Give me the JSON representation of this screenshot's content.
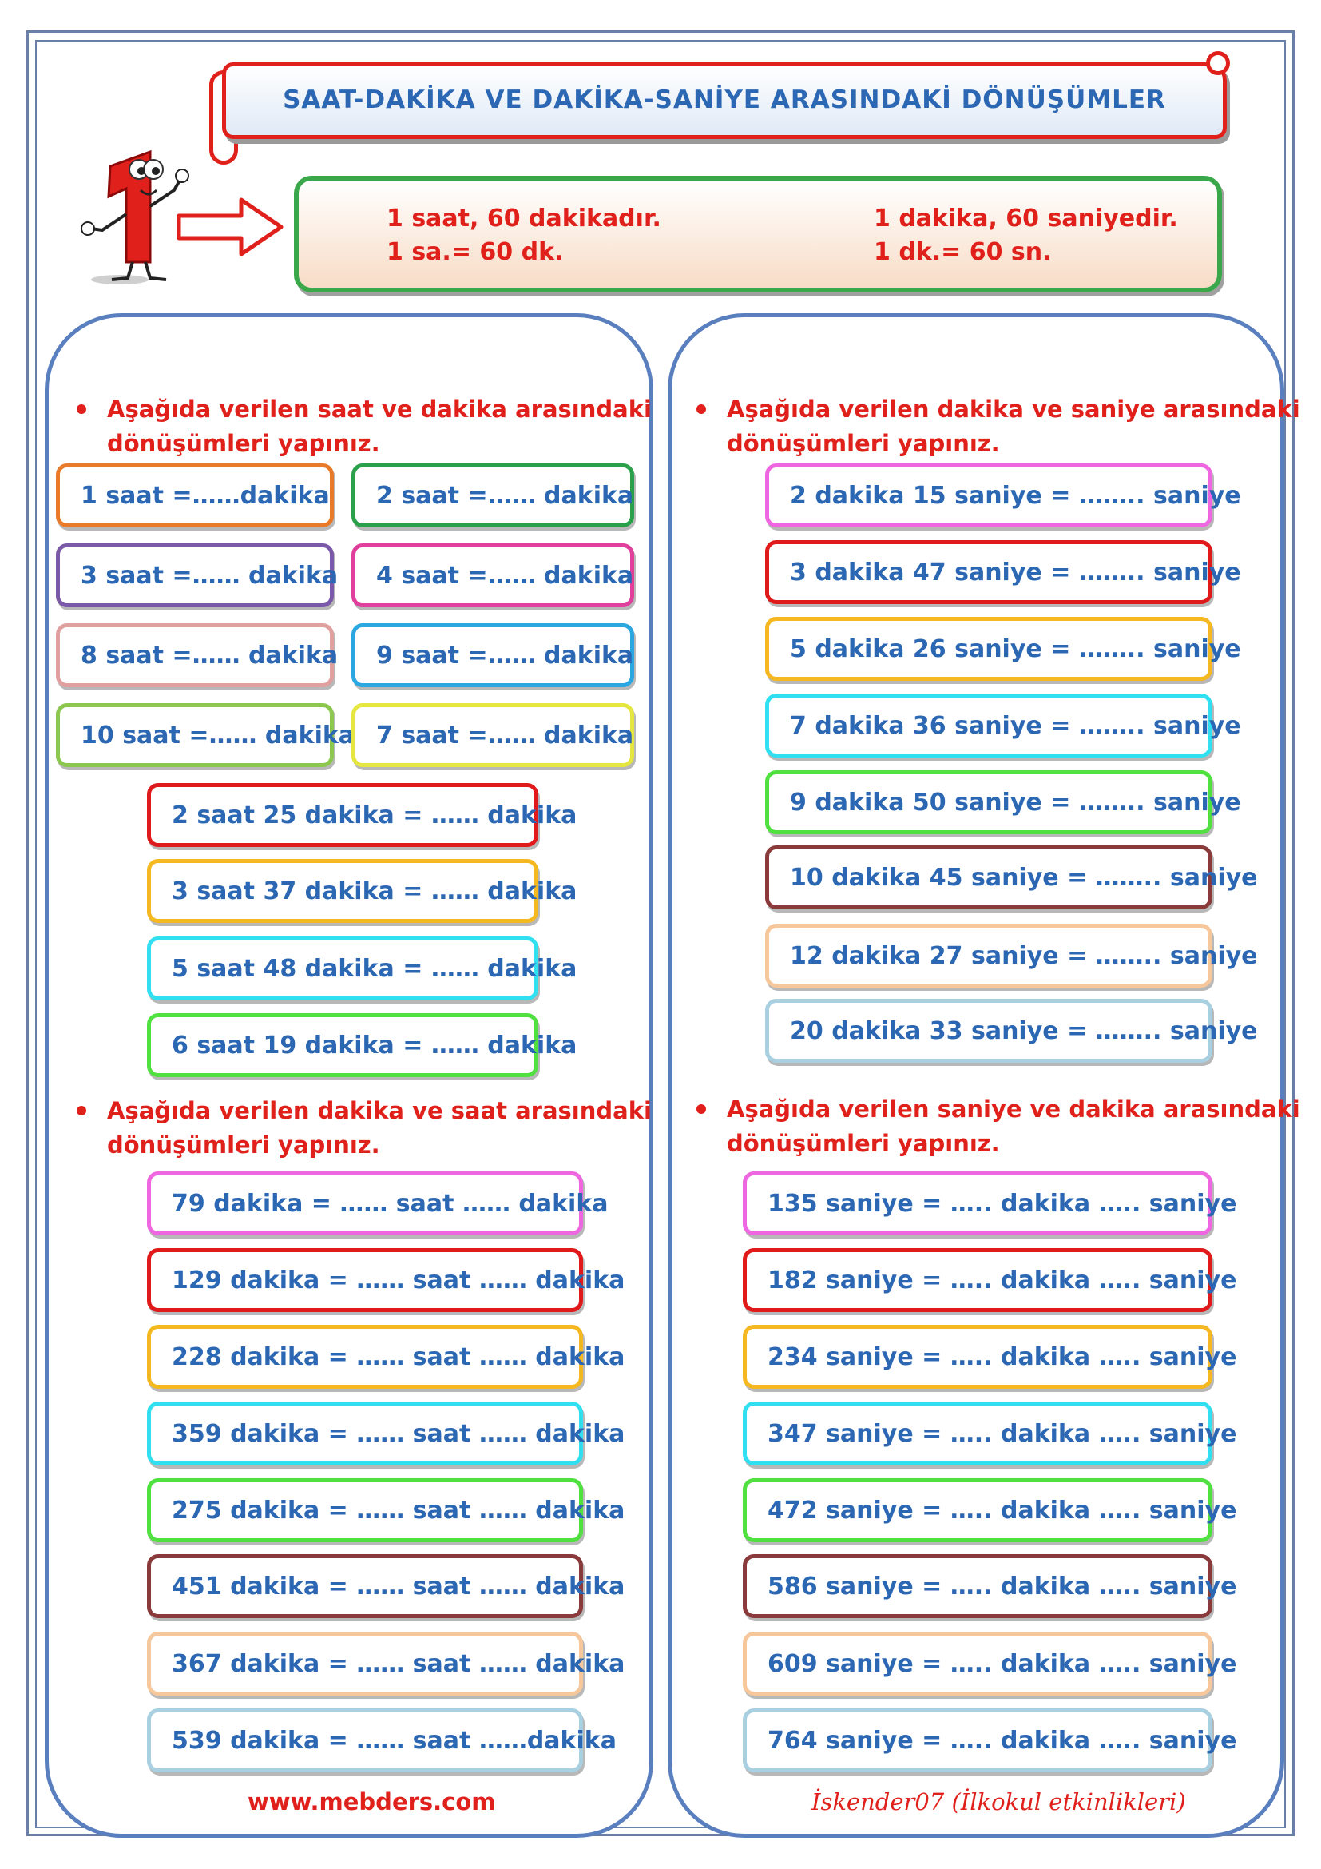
{
  "title": "SAAT-DAKİKA VE DAKİKA-SANİYE ARASINDAKİ DÖNÜŞÜMLER",
  "info": {
    "line1_left": "1 saat, 60 dakikadır.",
    "line2_left": "1 sa.= 60 dk.",
    "line1_right": "1 dakika, 60 saniyedir.",
    "line2_right": "1 dk.= 60 sn."
  },
  "sections": {
    "saat_dakika": {
      "instruction_1": "Aşağıda verilen saat ve dakika arasındaki",
      "instruction_2": "dönüşümleri yapınız."
    },
    "dakika_saat": {
      "instruction_1": "Aşağıda verilen dakika ve saat arasındaki",
      "instruction_2": "dönüşümleri yapınız."
    },
    "dakika_saniye": {
      "instruction_1": "Aşağıda verilen dakika ve saniye arasındaki",
      "instruction_2": "dönüşümleri yapınız."
    },
    "saniye_dakika": {
      "instruction_1": "Aşağıda verilen saniye ve dakika arasındaki",
      "instruction_2": "dönüşümleri yapınız."
    }
  },
  "saat_small": [
    {
      "text": "1 saat =……dakika",
      "color": "#e87a2a"
    },
    {
      "text": "2 saat =…… dakika",
      "color": "#2aa04a"
    },
    {
      "text": "3 saat =…… dakika",
      "color": "#7a5aa8"
    },
    {
      "text": "4 saat =…… dakika",
      "color": "#e0409c"
    },
    {
      "text": "8 saat =…… dakika",
      "color": "#e0a0a0"
    },
    {
      "text": "9 saat =…… dakika",
      "color": "#2aa6e0"
    },
    {
      "text": "10 saat =…… dakika",
      "color": "#8cc850"
    },
    {
      "text": "7 saat =…… dakika",
      "color": "#e6e640"
    }
  ],
  "saat_dakika_items": [
    {
      "text": "2 saat 25 dakika = …… dakika",
      "color": "#e01a1a"
    },
    {
      "text": "3 saat 37 dakika = …… dakika",
      "color": "#f5b820"
    },
    {
      "text": "5 saat 48 dakika = …… dakika",
      "color": "#30e0f0"
    },
    {
      "text": "6 saat 19 dakika = …… dakika",
      "color": "#50e040"
    }
  ],
  "dakika_saat_items": [
    {
      "text": "79 dakika = …… saat …… dakika",
      "color": "#ee66e0"
    },
    {
      "text": "129 dakika = …… saat …… dakika",
      "color": "#e01a1a"
    },
    {
      "text": "228 dakika = …… saat …… dakika",
      "color": "#f5b820"
    },
    {
      "text": "359 dakika = …… saat …… dakika",
      "color": "#30e0f0"
    },
    {
      "text": "275 dakika = …… saat …… dakika",
      "color": "#50e040"
    },
    {
      "text": "451 dakika = …… saat …… dakika",
      "color": "#8a3a3a"
    },
    {
      "text": "367 dakika = …… saat …… dakika",
      "color": "#f5c79a"
    },
    {
      "text": "539 dakika = …… saat ……dakika",
      "color": "#a8d0e0"
    }
  ],
  "dakika_saniye_items": [
    {
      "text": "2 dakika 15 saniye = …….. saniye",
      "color": "#ee66e0"
    },
    {
      "text": "3 dakika 47 saniye = …….. saniye",
      "color": "#e01a1a"
    },
    {
      "text": "5 dakika 26 saniye = …….. saniye",
      "color": "#f5b820"
    },
    {
      "text": "7 dakika 36 saniye = …….. saniye",
      "color": "#30e0f0"
    },
    {
      "text": "9 dakika 50 saniye = …….. saniye",
      "color": "#50e040"
    },
    {
      "text": "10 dakika 45 saniye = …….. saniye",
      "color": "#8a3a3a"
    },
    {
      "text": "12 dakika 27 saniye = …….. saniye",
      "color": "#f5c79a"
    },
    {
      "text": "20 dakika 33 saniye = …….. saniye",
      "color": "#a8d0e0"
    }
  ],
  "saniye_dakika_items": [
    {
      "text": "135 saniye = ….. dakika ….. saniye",
      "color": "#ee66e0"
    },
    {
      "text": "182 saniye = ….. dakika ….. saniye",
      "color": "#e01a1a"
    },
    {
      "text": "234 saniye = ….. dakika ….. saniye",
      "color": "#f5b820"
    },
    {
      "text": "347 saniye = ….. dakika ….. saniye",
      "color": "#30e0f0"
    },
    {
      "text": "472 saniye = ….. dakika ….. saniye",
      "color": "#50e040"
    },
    {
      "text": "586 saniye = ….. dakika ….. saniye",
      "color": "#8a3a3a"
    },
    {
      "text": "609 saniye = ….. dakika ….. saniye",
      "color": "#f5c79a"
    },
    {
      "text": "764 saniye = ….. dakika ….. saniye",
      "color": "#a8d0e0"
    }
  ],
  "footer": {
    "website": "www.mebders.com",
    "author": "İskender07 (İlkokul etkinlikleri)"
  }
}
